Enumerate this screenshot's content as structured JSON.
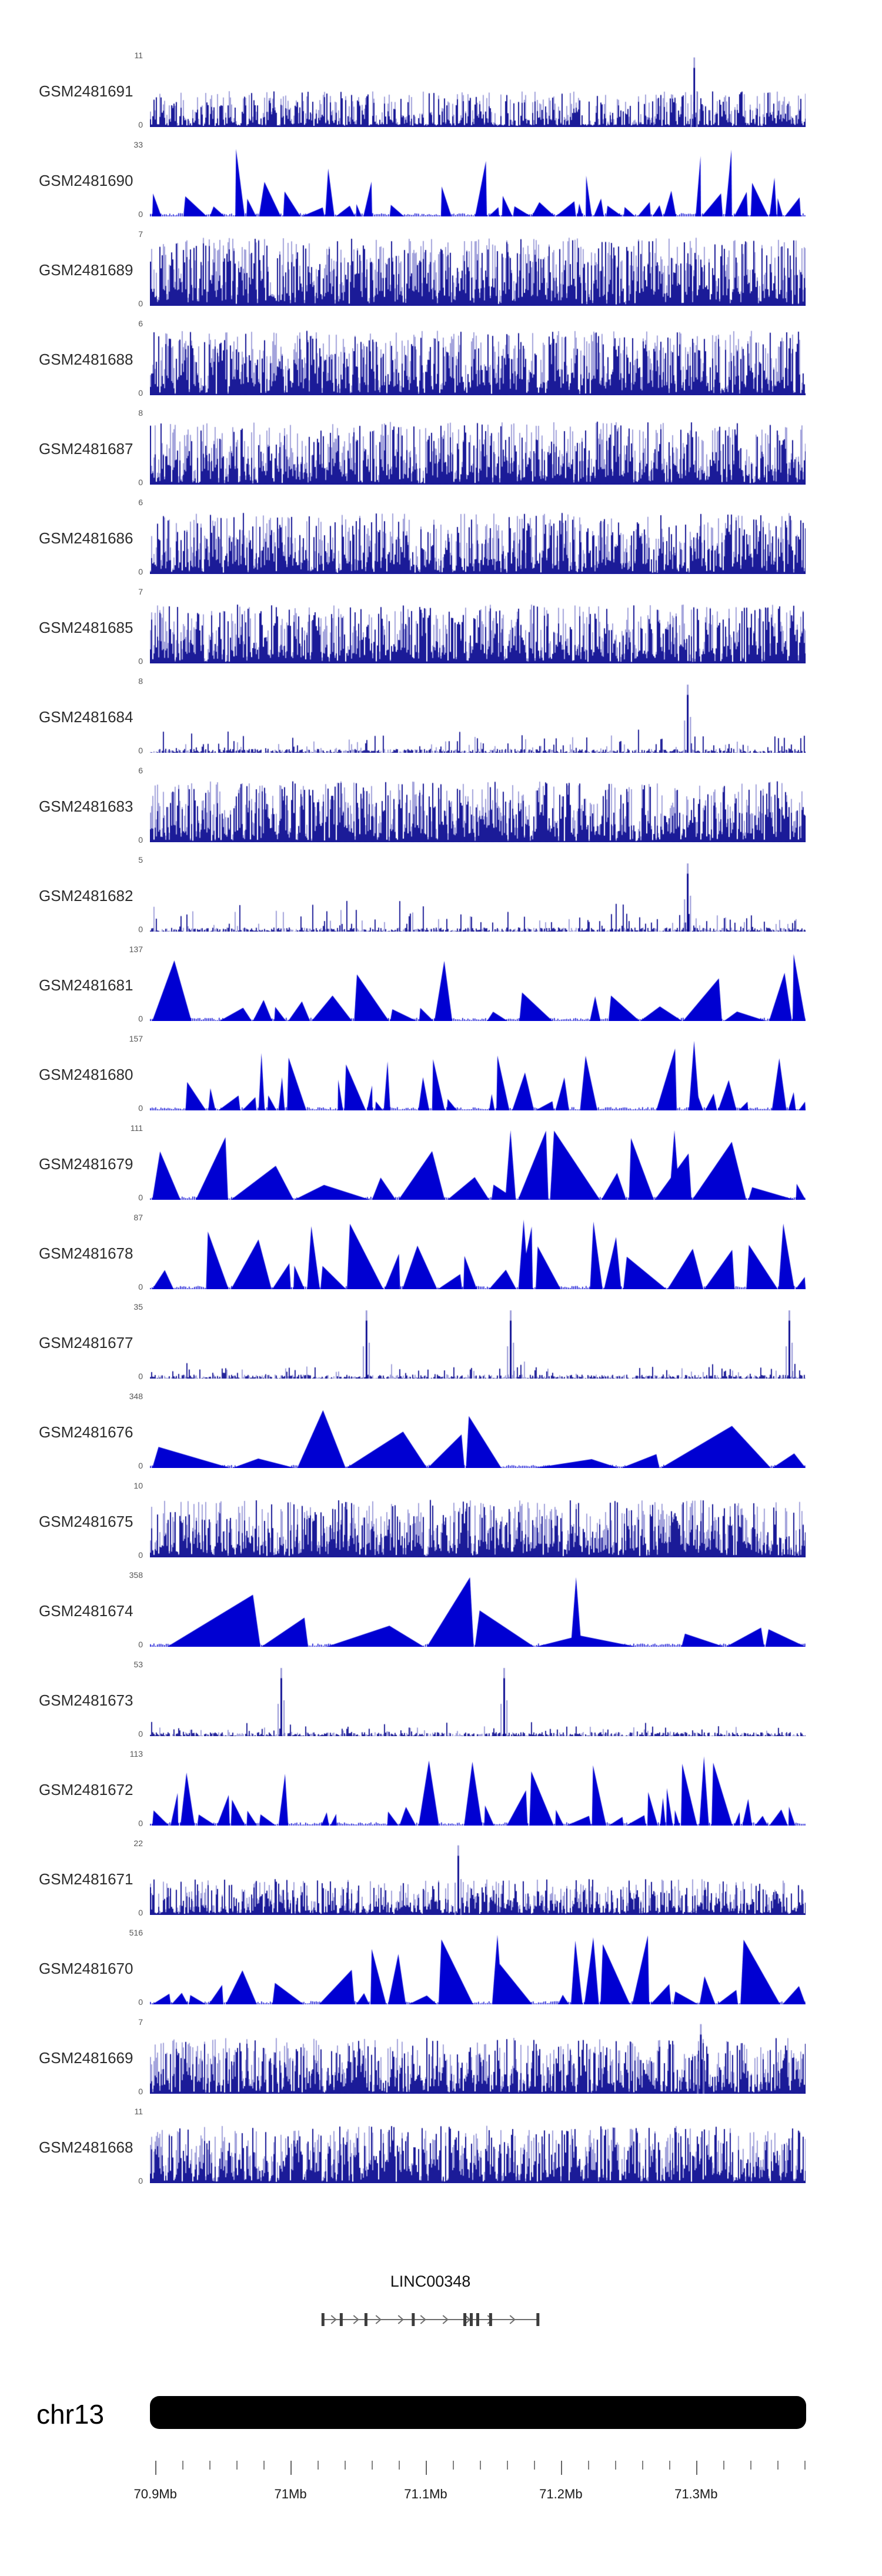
{
  "page": {
    "background": "#ffffff"
  },
  "chart_data": {
    "type": "area",
    "title": "",
    "description": "Genome browser coverage signal tracks for 24 GEO samples over a region of chromosome 13",
    "region": {
      "chromosome": "chr13",
      "start_mb": 70.896,
      "end_mb": 71.381,
      "unit": "Mb"
    },
    "x_axis": {
      "tick_labels": [
        "70.9Mb",
        "71Mb",
        "71.1Mb",
        "71.2Mb",
        "71.3Mb"
      ],
      "tick_values_mb": [
        70.9,
        71.0,
        71.1,
        71.2,
        71.3
      ],
      "minor_tick_interval_mb": 0.02
    },
    "tracks": [
      {
        "label": "GSM2481691",
        "y_min": 0,
        "y_max": 11,
        "style": "histogram",
        "density": 0.5,
        "spikes": [
          0.83
        ]
      },
      {
        "label": "GSM2481690",
        "y_min": 0,
        "y_max": 33,
        "style": "peaks",
        "peak_size": "small",
        "density": 0.88,
        "spikes": []
      },
      {
        "label": "GSM2481689",
        "y_min": 0,
        "y_max": 7,
        "style": "histogram",
        "density": 0.95,
        "spikes": []
      },
      {
        "label": "GSM2481688",
        "y_min": 0,
        "y_max": 6,
        "style": "histogram",
        "density": 0.9,
        "spikes": []
      },
      {
        "label": "GSM2481687",
        "y_min": 0,
        "y_max": 8,
        "style": "histogram",
        "density": 0.88,
        "spikes": []
      },
      {
        "label": "GSM2481686",
        "y_min": 0,
        "y_max": 6,
        "style": "histogram",
        "density": 0.85,
        "spikes": []
      },
      {
        "label": "GSM2481685",
        "y_min": 0,
        "y_max": 7,
        "style": "histogram",
        "density": 0.82,
        "spikes": []
      },
      {
        "label": "GSM2481684",
        "y_min": 0,
        "y_max": 8,
        "style": "sparse",
        "density": 0.45,
        "spikes": [
          0.82
        ]
      },
      {
        "label": "GSM2481683",
        "y_min": 0,
        "y_max": 6,
        "style": "histogram",
        "density": 0.85,
        "spikes": []
      },
      {
        "label": "GSM2481682",
        "y_min": 0,
        "y_max": 5,
        "style": "sparse",
        "density": 0.55,
        "spikes": [
          0.82
        ]
      },
      {
        "label": "GSM2481681",
        "y_min": 0,
        "y_max": 137,
        "style": "peaks",
        "peak_size": "medium",
        "density": 0.92,
        "spikes": []
      },
      {
        "label": "GSM2481680",
        "y_min": 0,
        "y_max": 157,
        "style": "peaks",
        "peak_size": "small",
        "density": 0.8,
        "spikes": [
          0.83
        ]
      },
      {
        "label": "GSM2481679",
        "y_min": 0,
        "y_max": 111,
        "style": "peaks",
        "peak_size": "large",
        "density": 0.85,
        "spikes": [
          0.55,
          0.8
        ]
      },
      {
        "label": "GSM2481678",
        "y_min": 0,
        "y_max": 87,
        "style": "peaks",
        "peak_size": "medium",
        "density": 0.85,
        "spikes": [
          0.57
        ]
      },
      {
        "label": "GSM2481677",
        "y_min": 0,
        "y_max": 35,
        "style": "sparse",
        "density": 0.3,
        "spikes": [
          0.33,
          0.55,
          0.975
        ]
      },
      {
        "label": "GSM2481676",
        "y_min": 0,
        "y_max": 348,
        "style": "peaks",
        "peak_size": "xlarge",
        "density": 0.8,
        "spikes": []
      },
      {
        "label": "GSM2481675",
        "y_min": 0,
        "y_max": 10,
        "style": "histogram",
        "density": 0.8,
        "spikes": []
      },
      {
        "label": "GSM2481674",
        "y_min": 0,
        "y_max": 358,
        "style": "peaks",
        "peak_size": "xlarge",
        "density": 0.7,
        "spikes": [
          0.65
        ]
      },
      {
        "label": "GSM2481673",
        "y_min": 0,
        "y_max": 53,
        "style": "sparse",
        "density": 0.25,
        "spikes": [
          0.2,
          0.54
        ]
      },
      {
        "label": "GSM2481672",
        "y_min": 0,
        "y_max": 113,
        "style": "peaks",
        "peak_size": "small",
        "density": 0.9,
        "spikes": []
      },
      {
        "label": "GSM2481671",
        "y_min": 0,
        "y_max": 22,
        "style": "histogram",
        "density": 0.5,
        "spikes": [
          0.47
        ]
      },
      {
        "label": "GSM2481670",
        "y_min": 0,
        "y_max": 516,
        "style": "peaks",
        "peak_size": "medium",
        "density": 0.8,
        "spikes": [
          0.53
        ]
      },
      {
        "label": "GSM2481669",
        "y_min": 0,
        "y_max": 7,
        "style": "histogram",
        "density": 0.78,
        "spikes": [
          0.84
        ]
      },
      {
        "label": "GSM2481668",
        "y_min": 0,
        "y_max": 11,
        "style": "histogram",
        "density": 0.8,
        "spikes": []
      }
    ]
  },
  "gene_track": {
    "name": "LINC00348",
    "start_mb": 71.024,
    "end_mb": 71.183,
    "strand": "+",
    "exon_fractions": [
      0,
      0.085,
      0.2,
      0.42,
      0.66,
      0.69,
      0.72,
      0.78,
      1.0
    ]
  },
  "ideogram": {
    "chromosome": "chr13",
    "color": "#000000"
  },
  "colors": {
    "histogram_dark": "#00008b",
    "histogram_light": "#9595d6",
    "peak_fill": "#0000d2",
    "axis_tick": "#808080",
    "gene_glyph": "#6e6e6e",
    "gene_exon": "#3c3c3c"
  }
}
